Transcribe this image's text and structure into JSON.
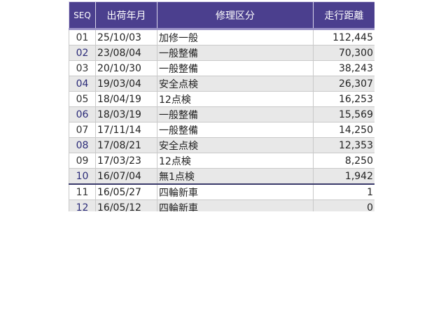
{
  "headers": {
    "seq": "SEQ",
    "date": "出荷年月",
    "type": "修理区分",
    "distance": "走行距離"
  },
  "colors": {
    "header_bg": "#4b3f8e",
    "even_row": "#e8e8e8"
  },
  "rows": [
    {
      "seq": "01",
      "date": "25/10/03",
      "type": "加修一般",
      "distance": "112,445"
    },
    {
      "seq": "02",
      "date": "23/08/04",
      "type": "一般整備",
      "distance": "70,300"
    },
    {
      "seq": "03",
      "date": "20/10/30",
      "type": "一般整備",
      "distance": "38,243"
    },
    {
      "seq": "04",
      "date": "19/03/04",
      "type": "安全点検",
      "distance": "26,307"
    },
    {
      "seq": "05",
      "date": "18/04/19",
      "type": "12点検",
      "distance": "16,253"
    },
    {
      "seq": "06",
      "date": "18/03/19",
      "type": "一般整備",
      "distance": "15,569"
    },
    {
      "seq": "07",
      "date": "17/11/14",
      "type": "一般整備",
      "distance": "14,250"
    },
    {
      "seq": "08",
      "date": "17/08/21",
      "type": "安全点検",
      "distance": "12,353"
    },
    {
      "seq": "09",
      "date": "17/03/23",
      "type": "12点検",
      "distance": "8,250"
    },
    {
      "seq": "10",
      "date": "16/07/04",
      "type": "無1点検",
      "distance": "1,942"
    },
    {
      "seq": "11",
      "date": "16/05/27",
      "type": "四輪新車",
      "distance": "1"
    },
    {
      "seq": "12",
      "date": "16/05/12",
      "type": "四輪新車",
      "distance": "0"
    }
  ]
}
